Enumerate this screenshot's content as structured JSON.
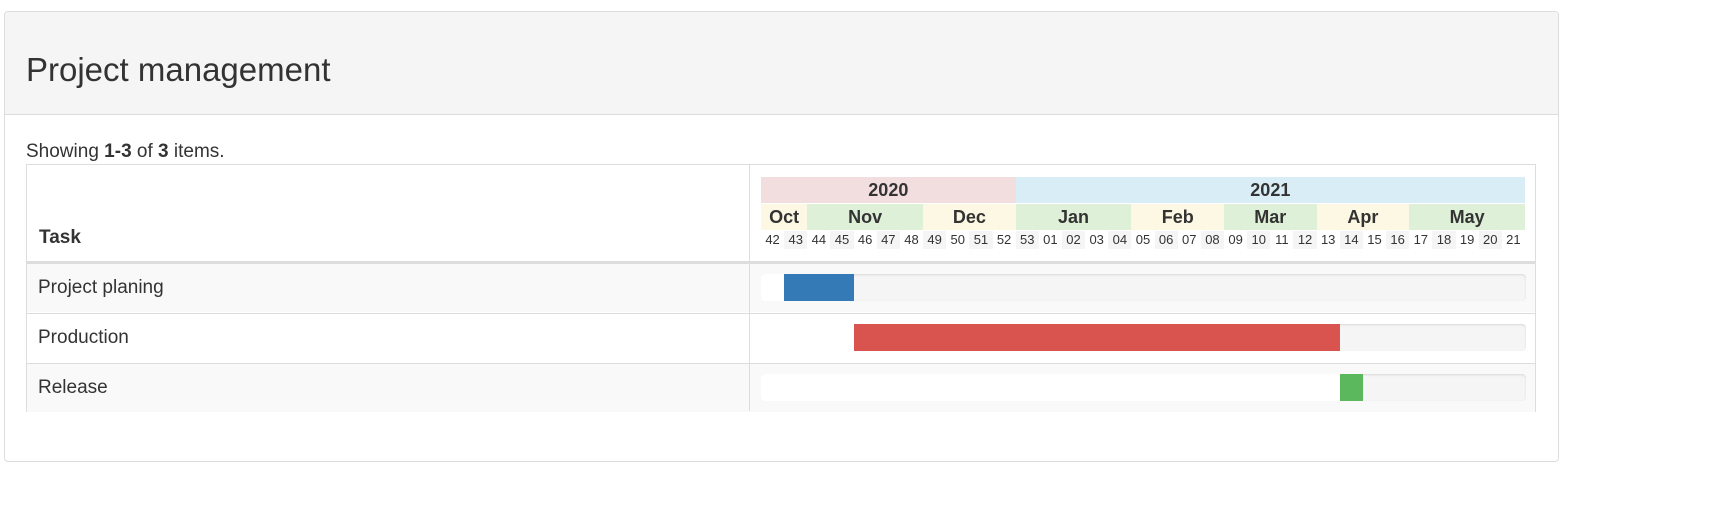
{
  "panel": {
    "title": "Project management"
  },
  "summary": {
    "prefix": "Showing ",
    "range": "1-3",
    "middle": " of ",
    "total": "3",
    "suffix": " items."
  },
  "table": {
    "task_header": "Task",
    "years": [
      {
        "label": "2020",
        "weeks": 11,
        "color": "#f2dede"
      },
      {
        "label": "2021",
        "weeks": 22,
        "color": "#d9edf7"
      }
    ],
    "months": [
      {
        "label": "Oct",
        "weeks": 2,
        "color": "#fcf8e3"
      },
      {
        "label": "Nov",
        "weeks": 5,
        "color": "#dff0d8"
      },
      {
        "label": "Dec",
        "weeks": 4,
        "color": "#fcf8e3"
      },
      {
        "label": "Jan",
        "weeks": 5,
        "color": "#dff0d8"
      },
      {
        "label": "Feb",
        "weeks": 4,
        "color": "#fcf8e3"
      },
      {
        "label": "Mar",
        "weeks": 4,
        "color": "#dff0d8"
      },
      {
        "label": "Apr",
        "weeks": 4,
        "color": "#fcf8e3"
      },
      {
        "label": "May",
        "weeks": 5,
        "color": "#dff0d8"
      }
    ],
    "weeks": [
      "42",
      "43",
      "44",
      "45",
      "46",
      "47",
      "48",
      "49",
      "50",
      "51",
      "52",
      "53",
      "01",
      "02",
      "03",
      "04",
      "05",
      "06",
      "07",
      "08",
      "09",
      "10",
      "11",
      "12",
      "13",
      "14",
      "15",
      "16",
      "17",
      "18",
      "19",
      "20",
      "21"
    ],
    "week_shade_color": "#f5f5f5",
    "rows": [
      {
        "task": "Project planing",
        "start_week_index": 1,
        "end_week_index": 4,
        "color": "#337ab7"
      },
      {
        "task": "Production",
        "start_week_index": 4,
        "end_week_index": 25,
        "color": "#d9534f"
      },
      {
        "task": "Release",
        "start_week_index": 25,
        "end_week_index": 26,
        "color": "#5cb85c"
      }
    ]
  }
}
